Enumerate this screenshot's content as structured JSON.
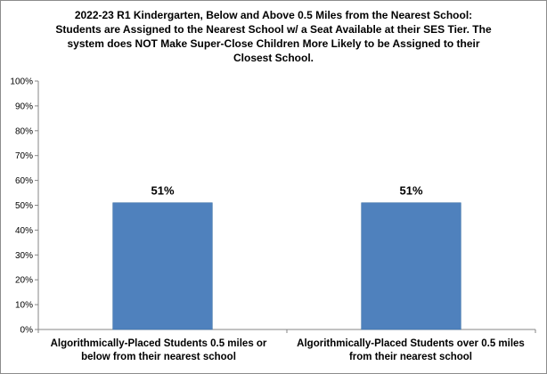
{
  "chart_data": {
    "type": "bar",
    "title_lines": [
      "2022-23 R1 Kindergarten, Below and Above 0.5 Miles from the Nearest School:",
      "Students are Assigned to the Nearest School w/ a Seat Available at their SES Tier. The",
      "system does NOT Make Super-Close Children More Likely to be Assigned to their",
      "Closest School."
    ],
    "categories": [
      {
        "lines": [
          "Algorithmically-Placed Students 0.5 miles or",
          "below from their nearest school"
        ]
      },
      {
        "lines": [
          "Algorithmically-Placed Students over 0.5 miles",
          "from their nearest school"
        ]
      }
    ],
    "values": [
      51,
      51
    ],
    "data_labels": [
      "51%",
      "51%"
    ],
    "ylim": [
      0,
      100
    ],
    "yticks": [
      0,
      10,
      20,
      30,
      40,
      50,
      60,
      70,
      80,
      90,
      100
    ],
    "ytick_labels": [
      "0%",
      "10%",
      "20%",
      "30%",
      "40%",
      "50%",
      "60%",
      "70%",
      "80%",
      "90%",
      "100%"
    ],
    "xlabel": "",
    "ylabel": "",
    "grid": false,
    "legend": "none",
    "colors": {
      "bar_fill": "#4f81bd",
      "bar_stroke": "#3a6ea5",
      "axis": "#868686"
    }
  }
}
